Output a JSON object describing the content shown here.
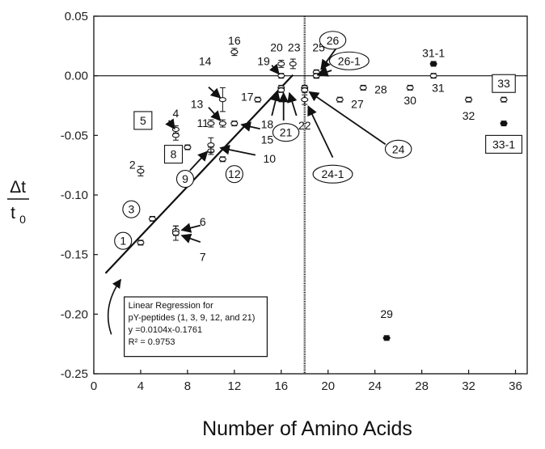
{
  "chart_data": {
    "type": "scatter",
    "xlabel": "Number of Amino Acids",
    "ylabel_num": "Δt",
    "ylabel_den": "t",
    "ylabel_den_sub": "0",
    "xlim": [
      0,
      37
    ],
    "ylim": [
      -0.25,
      0.05
    ],
    "xticks": [
      0,
      4,
      8,
      12,
      16,
      20,
      24,
      28,
      32,
      36
    ],
    "yticks": [
      0.05,
      0.0,
      -0.05,
      -0.1,
      -0.15,
      -0.2,
      -0.25
    ],
    "ytick_labels": [
      "0.05",
      "0.00",
      "-0.05",
      "-0.10",
      "-0.15",
      "-0.20",
      "-0.25"
    ],
    "vertical_line_x": 18,
    "horizontal_line_y": 0,
    "points": [
      {
        "label": "1",
        "x": 4,
        "y": -0.14,
        "err": 0.002,
        "filled": false
      },
      {
        "label": "2",
        "x": 4,
        "y": -0.08,
        "err": 0.004,
        "filled": false
      },
      {
        "label": "3",
        "x": 5,
        "y": -0.12,
        "err": 0.002,
        "filled": false
      },
      {
        "label": "4",
        "x": 7,
        "y": -0.05,
        "err": 0.004,
        "filled": false
      },
      {
        "label": "5",
        "x": 7,
        "y": -0.045,
        "err": 0.003,
        "filled": false
      },
      {
        "label": "6",
        "x": 7,
        "y": -0.13,
        "err": 0.004,
        "filled": false
      },
      {
        "label": "7",
        "x": 7,
        "y": -0.132,
        "err": 0.006,
        "filled": false
      },
      {
        "label": "8",
        "x": 8,
        "y": -0.06,
        "err": 0.002,
        "filled": false
      },
      {
        "label": "9",
        "x": 10,
        "y": -0.063,
        "err": 0.003,
        "filled": false
      },
      {
        "label": "10",
        "x": 10,
        "y": -0.058,
        "err": 0.006,
        "filled": false
      },
      {
        "label": "11",
        "x": 10,
        "y": -0.04,
        "err": 0.003,
        "filled": false
      },
      {
        "label": "12",
        "x": 11,
        "y": -0.07,
        "err": 0.002,
        "filled": false
      },
      {
        "label": "13",
        "x": 11,
        "y": -0.04,
        "err": 0.003,
        "filled": false
      },
      {
        "label": "14",
        "x": 11,
        "y": -0.02,
        "err": 0.01,
        "filled": false
      },
      {
        "label": "15",
        "x": 12,
        "y": -0.04,
        "err": 0.002,
        "filled": false
      },
      {
        "label": "16",
        "x": 12,
        "y": 0.02,
        "err": 0.003,
        "filled": false
      },
      {
        "label": "17",
        "x": 14,
        "y": -0.02,
        "err": 0.002,
        "filled": false
      },
      {
        "label": "18",
        "x": 16,
        "y": -0.01,
        "err": 0.002,
        "filled": false
      },
      {
        "label": "19",
        "x": 16,
        "y": 0.0,
        "err": 0.002,
        "filled": false
      },
      {
        "label": "20",
        "x": 16,
        "y": 0.01,
        "err": 0.003,
        "filled": false
      },
      {
        "label": "21",
        "x": 16,
        "y": -0.012,
        "err": 0.002,
        "filled": false
      },
      {
        "label": "22",
        "x": 18,
        "y": -0.02,
        "err": 0.004,
        "filled": false
      },
      {
        "label": "23",
        "x": 17,
        "y": 0.01,
        "err": 0.004,
        "filled": false
      },
      {
        "label": "24",
        "x": 18,
        "y": -0.01,
        "err": 0.002,
        "filled": false
      },
      {
        "label": "24-1",
        "x": 18,
        "y": -0.012,
        "err": 0.002,
        "filled": false
      },
      {
        "label": "25",
        "x": 19,
        "y": 0.0,
        "err": 0.002,
        "filled": true
      },
      {
        "label": "26",
        "x": 19,
        "y": 0.003,
        "err": 0.002,
        "filled": false
      },
      {
        "label": "26-1",
        "x": 19,
        "y": 0.0,
        "err": 0.002,
        "filled": false
      },
      {
        "label": "27",
        "x": 21,
        "y": -0.02,
        "err": 0.002,
        "filled": false
      },
      {
        "label": "28",
        "x": 23,
        "y": -0.01,
        "err": 0.001,
        "filled": false
      },
      {
        "label": "29",
        "x": 25,
        "y": -0.22,
        "err": 0.001,
        "filled": true
      },
      {
        "label": "30",
        "x": 27,
        "y": -0.01,
        "err": 0.001,
        "filled": false
      },
      {
        "label": "31",
        "x": 29,
        "y": 0.0,
        "err": 0.001,
        "filled": false
      },
      {
        "label": "31-1",
        "x": 29,
        "y": 0.01,
        "err": 0.001,
        "filled": true
      },
      {
        "label": "32",
        "x": 32,
        "y": -0.02,
        "err": 0.002,
        "filled": false
      },
      {
        "label": "33",
        "x": 35,
        "y": -0.02,
        "err": 0.002,
        "filled": false
      },
      {
        "label": "33-1",
        "x": 35,
        "y": -0.04,
        "err": 0.001,
        "filled": true
      }
    ],
    "regression": {
      "slope": 0.0104,
      "intercept": -0.1761,
      "x_range": [
        1,
        17
      ],
      "text": [
        "Linear Regression for",
        "pY-peptides (1, 3, 9, 12, and 21)",
        "y =0.0104x-0.1761",
        "R² = 0.9753"
      ]
    },
    "annotations": [
      {
        "text": "1",
        "tx": 2.5,
        "ty": -0.1385,
        "shape": "circle"
      },
      {
        "text": "2",
        "tx": 3.3,
        "ty": -0.0745,
        "shape": "none"
      },
      {
        "text": "3",
        "tx": 3.2,
        "ty": -0.112,
        "shape": "circle"
      },
      {
        "text": "4",
        "tx": 7.0,
        "ty": -0.0315,
        "shape": "none"
      },
      {
        "text": "5",
        "tx": 4.2,
        "ty": -0.0375,
        "shape": "box"
      },
      {
        "text": "6",
        "tx": 9.3,
        "ty": -0.1225,
        "shape": "none"
      },
      {
        "text": "7",
        "tx": 9.3,
        "ty": -0.152,
        "shape": "none"
      },
      {
        "text": "8",
        "tx": 6.8,
        "ty": -0.0658,
        "shape": "box"
      },
      {
        "text": "9",
        "tx": 7.8,
        "ty": -0.0865,
        "shape": "circle"
      },
      {
        "text": "10",
        "tx": 15.0,
        "ty": -0.0695,
        "shape": "none"
      },
      {
        "text": "11",
        "tx": 9.3,
        "ty": -0.0395,
        "shape": "none"
      },
      {
        "text": "12",
        "tx": 12.0,
        "ty": -0.0825,
        "shape": "circle"
      },
      {
        "text": "13",
        "tx": 8.8,
        "ty": -0.0235,
        "shape": "none"
      },
      {
        "text": "14",
        "tx": 9.5,
        "ty": 0.0125,
        "shape": "none"
      },
      {
        "text": "15",
        "tx": 14.8,
        "ty": -0.0535,
        "shape": "none"
      },
      {
        "text": "16",
        "tx": 12.0,
        "ty": 0.0298,
        "shape": "none"
      },
      {
        "text": "17",
        "tx": 13.1,
        "ty": -0.0175,
        "shape": "none"
      },
      {
        "text": "18",
        "tx": 14.8,
        "ty": -0.0405,
        "shape": "none"
      },
      {
        "text": "19",
        "tx": 14.5,
        "ty": 0.0125,
        "shape": "none"
      },
      {
        "text": "20",
        "tx": 15.6,
        "ty": 0.0238,
        "shape": "none"
      },
      {
        "text": "21",
        "tx": 16.4,
        "ty": -0.0475,
        "shape": "ellipse"
      },
      {
        "text": "22",
        "tx": 18.0,
        "ty": -0.0415,
        "shape": "none"
      },
      {
        "text": "23",
        "tx": 17.1,
        "ty": 0.0238,
        "shape": "none"
      },
      {
        "text": "24",
        "tx": 26.0,
        "ty": -0.0615,
        "shape": "ellipse"
      },
      {
        "text": "24-1",
        "tx": 20.4,
        "ty": -0.0825,
        "shape": "ellipse"
      },
      {
        "text": "25",
        "tx": 19.2,
        "ty": 0.0238,
        "shape": "none"
      },
      {
        "text": "26",
        "tx": 20.4,
        "ty": 0.0298,
        "shape": "ellipse"
      },
      {
        "text": "26-1",
        "tx": 21.8,
        "ty": 0.0125,
        "shape": "ellipse"
      },
      {
        "text": "27",
        "tx": 22.5,
        "ty": -0.0235,
        "shape": "none"
      },
      {
        "text": "28",
        "tx": 24.5,
        "ty": -0.0115,
        "shape": "none"
      },
      {
        "text": "29",
        "tx": 25.0,
        "ty": -0.1998,
        "shape": "none"
      },
      {
        "text": "30",
        "tx": 27.0,
        "ty": -0.0205,
        "shape": "none"
      },
      {
        "text": "31",
        "tx": 29.4,
        "ty": -0.0102,
        "shape": "none"
      },
      {
        "text": "31-1",
        "tx": 29.0,
        "ty": 0.0192,
        "shape": "none"
      },
      {
        "text": "32",
        "tx": 32.0,
        "ty": -0.0335,
        "shape": "none"
      },
      {
        "text": "33",
        "tx": 35.0,
        "ty": -0.0065,
        "shape": "box"
      },
      {
        "text": "33-1",
        "tx": 35.0,
        "ty": -0.0575,
        "shape": "box"
      }
    ],
    "arrows": [
      {
        "from": [
          9.8,
          -0.0095
        ],
        "to": [
          10.8,
          -0.0185
        ]
      },
      {
        "from": [
          9.8,
          -0.0265
        ],
        "to": [
          10.8,
          -0.0375
        ]
      },
      {
        "from": [
          14.2,
          -0.0445
        ],
        "to": [
          12.6,
          -0.041
        ]
      },
      {
        "from": [
          13.8,
          -0.0665
        ],
        "to": [
          10.8,
          -0.0605
        ]
      },
      {
        "from": [
          8.2,
          -0.0795
        ],
        "to": [
          9.7,
          -0.0635
        ]
      },
      {
        "from": [
          9.1,
          -0.1255
        ],
        "to": [
          7.5,
          -0.1295
        ]
      },
      {
        "from": [
          9.1,
          -0.1395
        ],
        "to": [
          7.5,
          -0.134
        ]
      },
      {
        "from": [
          15.2,
          -0.0335
        ],
        "to": [
          15.7,
          -0.0135
        ]
      },
      {
        "from": [
          16.2,
          -0.0375
        ],
        "to": [
          16.2,
          -0.0145
        ]
      },
      {
        "from": [
          17.3,
          -0.0335
        ],
        "to": [
          16.7,
          -0.0145
        ]
      },
      {
        "from": [
          15.2,
          0.0088
        ],
        "to": [
          15.8,
          0.0015
        ]
      },
      {
        "from": [
          19.6,
          0.0025
        ],
        "to": [
          19.1,
          0.0005
        ]
      },
      {
        "from": [
          20.8,
          0.0245
        ],
        "to": [
          19.4,
          0.0055
        ]
      },
      {
        "from": [
          20.3,
          0.0045
        ],
        "to": [
          19.2,
          0.0008
        ]
      },
      {
        "from": [
          20.4,
          -0.0685
        ],
        "to": [
          18.3,
          -0.0255
        ]
      },
      {
        "from": [
          24.9,
          -0.0575
        ],
        "to": [
          18.4,
          -0.0135
        ]
      },
      {
        "from": [
          6.4,
          -0.0375
        ],
        "to": [
          6.9,
          -0.0445
        ]
      }
    ],
    "pointer_curve": {
      "from": [
        1.5,
        -0.217
      ],
      "to": [
        2.3,
        -0.171
      ]
    }
  }
}
